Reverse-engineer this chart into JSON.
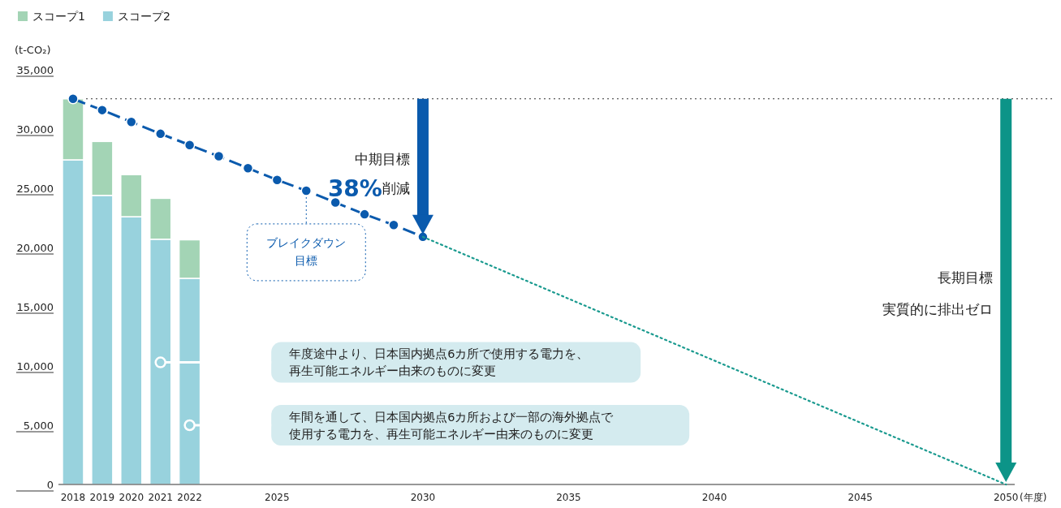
{
  "chart_data": {
    "type": "bar",
    "stacked": true,
    "ylabel": "(t-CO₂)",
    "xlabel": "(年度)",
    "x": [
      2018,
      2019,
      2020,
      2021,
      2022
    ],
    "series": [
      {
        "name": "スコープ2",
        "color": "#98d2dd",
        "values": [
          27400,
          24400,
          22600,
          20700,
          17400
        ]
      },
      {
        "name": "スコープ1",
        "color": "#a3d4b5",
        "values": [
          5150,
          4550,
          3550,
          3450,
          3250
        ]
      },
      {
        "type": "line",
        "color": "#0a5aad",
        "x": [
          2018,
          2019,
          2020,
          2021,
          2022,
          2023,
          2024,
          2025,
          2026,
          2027,
          2028,
          2029,
          2030
        ],
        "values": [
          32550,
          31600,
          30600,
          29600,
          28650,
          27700,
          26700,
          25700,
          24800,
          23800,
          22800,
          21900,
          20900
        ],
        "marker": "circle",
        "line_style": "dashed"
      },
      {
        "type": "line",
        "color": "#1a9a8f",
        "x": [
          2030,
          2050
        ],
        "values": [
          20900,
          0
        ],
        "marker": "none",
        "line_style": "dotted"
      }
    ],
    "xlim": [
      2017.5,
      2050.3
    ],
    "xticks": [
      2018,
      2019,
      2020,
      2021,
      2022,
      2025,
      2030,
      2035,
      2040,
      2045,
      2050
    ],
    "ylim": [
      0,
      35000
    ],
    "yticks": [
      {
        "value": 0,
        "label": "0"
      },
      {
        "value": 5000,
        "label": "5,000"
      },
      {
        "value": 10000,
        "label": "10,000"
      },
      {
        "value": 15000,
        "label": "15,000"
      },
      {
        "value": 20000,
        "label": "20,000"
      },
      {
        "value": 25000,
        "label": "25,000"
      },
      {
        "value": 30000,
        "label": "30,000"
      },
      {
        "value": 35000,
        "label": "35,000"
      }
    ],
    "ref_lines": [
      {
        "axis": "y",
        "value": 32550,
        "color": "#333333",
        "line_style": "dotted"
      }
    ],
    "annotations": [
      "中期目標",
      "38%削減",
      {
        "text": "ブレイクダウン目標",
        "x": 2026,
        "y": 24800
      },
      "長期目標",
      "実質的に排出ゼロ",
      "年度途中より、日本国内拠点6カ所で使用する電力を、再生可能エネルギー由来のものに変更",
      "年間を通して、日本国内拠点6カ所および一部の海外拠点で使用する電力を、再生可能エネルギー由来のものに変更"
    ],
    "grid": false,
    "legend": "top left"
  }
}
